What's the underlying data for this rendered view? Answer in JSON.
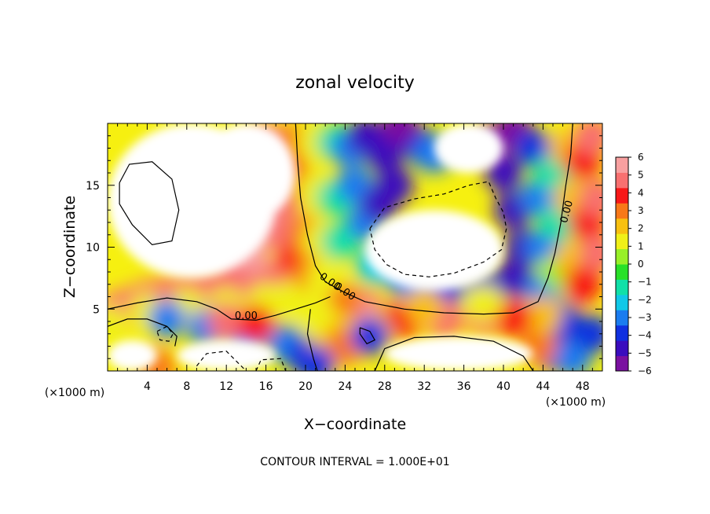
{
  "chart_data": {
    "type": "heatmap",
    "title": "zonal velocity",
    "xlabel": "X−coordinate",
    "ylabel": "Z−coordinate",
    "x_unit_label": "(×1000 m)",
    "z_unit_label": "(×1000 m)",
    "xlim": [
      0,
      50
    ],
    "ylim": [
      0,
      20
    ],
    "x_ticks": [
      4,
      8,
      12,
      16,
      20,
      24,
      28,
      32,
      36,
      40,
      44,
      48
    ],
    "x_tick_labels": [
      "4",
      "8",
      "12",
      "16",
      "20",
      "24",
      "28",
      "32",
      "36",
      "40",
      "44",
      "48"
    ],
    "y_ticks": [
      5,
      10,
      15
    ],
    "y_tick_labels": [
      "5",
      "10",
      "15"
    ],
    "colorbar": {
      "min": -6,
      "max": 6,
      "ticks": [
        6,
        5,
        4,
        3,
        2,
        1,
        0,
        -1,
        -2,
        -3,
        -4,
        -5,
        -6
      ],
      "tick_labels": [
        "6",
        "5",
        "4",
        "3",
        "2",
        "1",
        "0",
        "−1",
        "−2",
        "−3",
        "−4",
        "−5",
        "−6"
      ],
      "colors": [
        "#7a10a0",
        "#3a0cbe",
        "#1030e0",
        "#1a7cf0",
        "#10c8e8",
        "#10e0a8",
        "#28e028",
        "#98f028",
        "#f0f018",
        "#f8c010",
        "#f87818",
        "#f81818",
        "#f87070",
        "#f8a0a0"
      ]
    },
    "contour_interval_label": "CONTOUR INTERVAL = 1.000E+01",
    "contour_labels": [
      {
        "text": "0.00",
        "x": 14.0,
        "z": 4.2,
        "angle": 0
      },
      {
        "text": "0.00",
        "x": 22.3,
        "z": 7.0,
        "angle": 35
      },
      {
        "text": "0.00",
        "x": 23.8,
        "z": 6.2,
        "angle": 35
      },
      {
        "text": "0.00",
        "x": 46.7,
        "z": 12.8,
        "angle": -75
      }
    ],
    "field": [
      {
        "x": 0,
        "z": 4.6,
        "v": 5
      },
      {
        "x": 2,
        "z": 5.2,
        "v": 5
      },
      {
        "x": 4,
        "z": 5.8,
        "v": 5
      },
      {
        "x": 6,
        "z": 6.1,
        "v": 5
      },
      {
        "x": 8,
        "z": 6.4,
        "v": 5
      },
      {
        "x": 10,
        "z": 6.6,
        "v": 5
      },
      {
        "x": 12,
        "z": 6.8,
        "v": 5
      },
      {
        "x": 14,
        "z": 7.0,
        "v": 5
      },
      {
        "x": 16,
        "z": 7.2,
        "v": 5
      },
      {
        "x": 18,
        "z": 7.6,
        "v": 5
      },
      {
        "x": 0,
        "z": 3.8,
        "v": 1
      },
      {
        "x": 4,
        "z": 4.8,
        "v": 1
      },
      {
        "x": 8,
        "z": 5.2,
        "v": 1
      },
      {
        "x": 12,
        "z": 5.2,
        "v": 1
      },
      {
        "x": 16,
        "z": 5.6,
        "v": 1
      },
      {
        "x": 19,
        "z": 6.0,
        "v": 1
      },
      {
        "x": 6,
        "z": 4.2,
        "v": -3
      },
      {
        "x": 10,
        "z": 3.5,
        "v": -3
      },
      {
        "x": 14,
        "z": 2.8,
        "v": -3
      },
      {
        "x": 18,
        "z": 2.2,
        "v": -3
      },
      {
        "x": 20,
        "z": 1.2,
        "v": -4
      },
      {
        "x": 5,
        "z": 0.3,
        "v": 3
      },
      {
        "x": 12,
        "z": 4.0,
        "v": 5
      },
      {
        "x": 15,
        "z": 3.8,
        "v": 4
      },
      {
        "x": 13,
        "z": 8.3,
        "v": 5
      },
      {
        "x": 14.5,
        "z": 9.5,
        "v": 6
      },
      {
        "x": 11.5,
        "z": 10.8,
        "v": 5
      },
      {
        "x": 12.5,
        "z": 11.0,
        "v": 4
      },
      {
        "x": 15,
        "z": 11.5,
        "v": 6
      },
      {
        "x": 16,
        "z": 13.0,
        "v": 6
      },
      {
        "x": 17,
        "z": 15.0,
        "v": 6
      },
      {
        "x": 15,
        "z": 18.0,
        "v": 6
      },
      {
        "x": 16,
        "z": 18.5,
        "v": 5
      },
      {
        "x": 17,
        "z": 16.5,
        "v": 5
      },
      {
        "x": 18,
        "z": 17.0,
        "v": 4
      },
      {
        "x": 18,
        "z": 14.0,
        "v": 5
      },
      {
        "x": 18,
        "z": 11.0,
        "v": 5
      },
      {
        "x": 19,
        "z": 9.0,
        "v": 4
      },
      {
        "x": 19,
        "z": 18.5,
        "v": 3
      },
      {
        "x": 19.5,
        "z": 15.0,
        "v": 3
      },
      {
        "x": 20,
        "z": 11.0,
        "v": 3
      },
      {
        "x": 20.5,
        "z": 8.0,
        "v": 3
      },
      {
        "x": 21,
        "z": 18.5,
        "v": 1
      },
      {
        "x": 21,
        "z": 14.5,
        "v": 1
      },
      {
        "x": 21.5,
        "z": 10.5,
        "v": 1
      },
      {
        "x": 22,
        "z": 7.5,
        "v": 1
      },
      {
        "x": 23,
        "z": 18.5,
        "v": -1
      },
      {
        "x": 23,
        "z": 14.0,
        "v": -1
      },
      {
        "x": 23.5,
        "z": 10.5,
        "v": -1
      },
      {
        "x": 24.5,
        "z": 18.0,
        "v": -3
      },
      {
        "x": 25,
        "z": 15.0,
        "v": -3
      },
      {
        "x": 26,
        "z": 12.0,
        "v": -3
      },
      {
        "x": 26,
        "z": 19.0,
        "v": -5
      },
      {
        "x": 28,
        "z": 17.5,
        "v": -5
      },
      {
        "x": 29,
        "z": 15.0,
        "v": -5
      },
      {
        "x": 27.5,
        "z": 13.5,
        "v": -5
      },
      {
        "x": 30,
        "z": 19.2,
        "v": -5
      },
      {
        "x": 32,
        "z": 18.0,
        "v": -4
      },
      {
        "x": 33,
        "z": 17.5,
        "v": -3
      },
      {
        "x": 29.5,
        "z": 19.8,
        "v": -6
      },
      {
        "x": 27,
        "z": 8.5,
        "v": -2
      },
      {
        "x": 30,
        "z": 7.5,
        "v": -3
      },
      {
        "x": 34,
        "z": 6.5,
        "v": -4
      },
      {
        "x": 38,
        "z": 6.5,
        "v": -4
      },
      {
        "x": 41,
        "z": 7.5,
        "v": -5
      },
      {
        "x": 42,
        "z": 10.0,
        "v": -5
      },
      {
        "x": 41,
        "z": 13.0,
        "v": -5
      },
      {
        "x": 40,
        "z": 16.0,
        "v": -5
      },
      {
        "x": 39,
        "z": 18.5,
        "v": -6
      },
      {
        "x": 41,
        "z": 19.5,
        "v": -6
      },
      {
        "x": 43,
        "z": 18.0,
        "v": -4
      },
      {
        "x": 43.5,
        "z": 14.0,
        "v": -3
      },
      {
        "x": 44,
        "z": 10.0,
        "v": -3
      },
      {
        "x": 44,
        "z": 6.5,
        "v": -3
      },
      {
        "x": 45,
        "z": 16.0,
        "v": -1
      },
      {
        "x": 45.5,
        "z": 12.0,
        "v": -1
      },
      {
        "x": 45.5,
        "z": 8.0,
        "v": 0
      },
      {
        "x": 46.5,
        "z": 18.0,
        "v": 2
      },
      {
        "x": 47,
        "z": 14.0,
        "v": 2
      },
      {
        "x": 47,
        "z": 9.0,
        "v": 2
      },
      {
        "x": 48,
        "z": 17.0,
        "v": 4
      },
      {
        "x": 48.5,
        "z": 12.0,
        "v": 4
      },
      {
        "x": 49,
        "z": 19.0,
        "v": 5
      },
      {
        "x": 49.5,
        "z": 14.0,
        "v": 5
      },
      {
        "x": 49.5,
        "z": 9.5,
        "v": 5
      },
      {
        "x": 48,
        "z": 7.0,
        "v": 4
      },
      {
        "x": 46,
        "z": 4.0,
        "v": -4
      },
      {
        "x": 45,
        "z": 1.5,
        "v": -5
      },
      {
        "x": 47,
        "z": 1.0,
        "v": -3
      },
      {
        "x": 49,
        "z": 3.0,
        "v": -4
      },
      {
        "x": 43.5,
        "z": 2.0,
        "v": 3
      },
      {
        "x": 44,
        "z": 4.5,
        "v": 2
      },
      {
        "x": 30,
        "z": 4.2,
        "v": 4
      },
      {
        "x": 34,
        "z": 4.2,
        "v": 5
      },
      {
        "x": 38,
        "z": 4.5,
        "v": 5
      },
      {
        "x": 41,
        "z": 4.3,
        "v": 4
      },
      {
        "x": 32,
        "z": 5.2,
        "v": 2
      },
      {
        "x": 38,
        "z": 5.5,
        "v": 1
      },
      {
        "x": 26,
        "z": 5.0,
        "v": 5
      },
      {
        "x": 25.5,
        "z": 4.5,
        "v": 6
      },
      {
        "x": 24,
        "z": 5.5,
        "v": 3
      },
      {
        "x": 23,
        "z": 3.5,
        "v": 2
      },
      {
        "x": 22,
        "z": 1.5,
        "v": 2
      },
      {
        "x": 24,
        "z": 2.0,
        "v": 3
      },
      {
        "x": 27,
        "z": 3.0,
        "v": 2
      },
      {
        "x": 21,
        "z": 4.5,
        "v": 1
      },
      {
        "x": 26.5,
        "z": 2.8,
        "v": -4
      },
      {
        "x": 21,
        "z": 0.5,
        "v": -4
      }
    ],
    "blanks": [
      {
        "x": 0,
        "z": 20,
        "w": 17,
        "h": 12.5
      },
      {
        "x": 9,
        "z": 20,
        "w": 10,
        "h": 8
      },
      {
        "x": 26,
        "z": 13,
        "w": 14,
        "h": 6.5
      },
      {
        "x": 33,
        "z": 20,
        "w": 7,
        "h": 4
      },
      {
        "x": 0,
        "z": 2.5,
        "w": 5,
        "h": 2.5
      },
      {
        "x": 28,
        "z": 2.8,
        "w": 15,
        "h": 2.8
      },
      {
        "x": 7,
        "z": 2.5,
        "w": 10,
        "h": 2.5
      }
    ],
    "contours": [
      {
        "style": "solid",
        "points": [
          [
            19,
            20
          ],
          [
            19.2,
            17
          ],
          [
            19.5,
            14
          ],
          [
            20.2,
            11
          ],
          [
            21,
            8.5
          ],
          [
            22,
            7.2
          ],
          [
            23.8,
            6.4
          ],
          [
            26,
            5.6
          ],
          [
            30,
            5.0
          ],
          [
            34,
            4.7
          ],
          [
            38,
            4.6
          ],
          [
            41,
            4.7
          ],
          [
            43.5,
            5.6
          ],
          [
            44.5,
            7.5
          ],
          [
            45.2,
            9.5
          ],
          [
            45.8,
            12
          ],
          [
            46.3,
            15
          ],
          [
            46.8,
            17.5
          ],
          [
            47,
            20
          ]
        ]
      },
      {
        "style": "solid",
        "points": [
          [
            0,
            5.0
          ],
          [
            3,
            5.5
          ],
          [
            6,
            5.9
          ],
          [
            9,
            5.6
          ],
          [
            11,
            5.0
          ],
          [
            12.5,
            4.2
          ],
          [
            15,
            4.1
          ],
          [
            17,
            4.5
          ],
          [
            19,
            5.0
          ],
          [
            21,
            5.5
          ],
          [
            22.5,
            6.0
          ]
        ]
      },
      {
        "style": "solid",
        "points": [
          [
            0,
            3.6
          ],
          [
            2,
            4.2
          ],
          [
            4,
            4.2
          ],
          [
            6,
            3.6
          ],
          [
            7,
            2.8
          ],
          [
            6.8,
            2.0
          ]
        ]
      },
      {
        "style": "solid",
        "points": [
          [
            1.2,
            15.2
          ],
          [
            2.2,
            16.7
          ],
          [
            4.5,
            16.9
          ],
          [
            6.5,
            15.5
          ],
          [
            7.2,
            13.0
          ],
          [
            6.5,
            10.5
          ],
          [
            4.5,
            10.2
          ],
          [
            2.5,
            11.8
          ],
          [
            1.2,
            13.5
          ],
          [
            1.2,
            15.2
          ]
        ]
      },
      {
        "style": "solid",
        "points": [
          [
            27,
            0
          ],
          [
            28,
            1.8
          ],
          [
            31,
            2.7
          ],
          [
            35,
            2.8
          ],
          [
            39,
            2.4
          ],
          [
            42,
            1.2
          ],
          [
            43,
            0
          ]
        ]
      },
      {
        "style": "solid",
        "points": [
          [
            25.5,
            3.5
          ],
          [
            26.5,
            3.2
          ],
          [
            27,
            2.5
          ],
          [
            26.2,
            2.2
          ],
          [
            25.5,
            3.0
          ],
          [
            25.5,
            3.5
          ]
        ]
      },
      {
        "style": "solid",
        "points": [
          [
            20.5,
            5.0
          ],
          [
            20.2,
            3.0
          ],
          [
            20.8,
            1.0
          ],
          [
            21.2,
            0
          ]
        ]
      },
      {
        "style": "dashed",
        "points": [
          [
            26.5,
            11.5
          ],
          [
            28,
            13.2
          ],
          [
            31,
            13.9
          ],
          [
            34,
            14.3
          ],
          [
            36.5,
            15.0
          ],
          [
            38.5,
            15.3
          ],
          [
            39.2,
            14.0
          ],
          [
            40,
            12.8
          ],
          [
            40.3,
            11.5
          ],
          [
            39.8,
            9.8
          ],
          [
            38,
            8.8
          ],
          [
            35,
            7.9
          ],
          [
            32.5,
            7.6
          ],
          [
            30,
            7.8
          ],
          [
            28.2,
            8.6
          ],
          [
            27,
            9.8
          ],
          [
            26.5,
            11.5
          ]
        ]
      },
      {
        "style": "dashed",
        "points": [
          [
            5,
            3.2
          ],
          [
            6,
            3.6
          ],
          [
            6.6,
            3.0
          ],
          [
            6.2,
            2.4
          ],
          [
            5.3,
            2.5
          ],
          [
            5,
            3.2
          ]
        ]
      },
      {
        "style": "dashed",
        "points": [
          [
            9,
            0.4
          ],
          [
            10,
            1.4
          ],
          [
            12,
            1.6
          ],
          [
            13,
            0.8
          ],
          [
            14,
            0
          ]
        ]
      },
      {
        "style": "dashed",
        "points": [
          [
            15,
            0
          ],
          [
            15.5,
            0.9
          ],
          [
            17.5,
            1.0
          ],
          [
            18,
            0
          ]
        ]
      }
    ]
  }
}
